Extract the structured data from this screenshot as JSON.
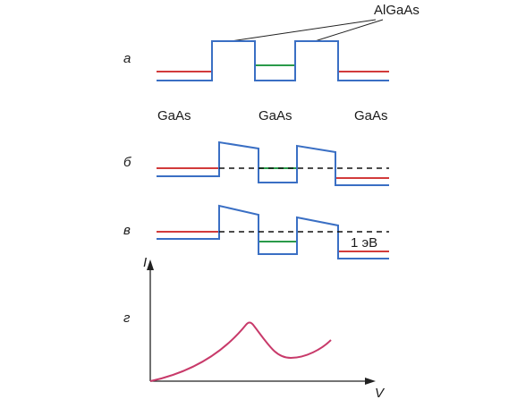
{
  "labels": {
    "barrier": "AlGaAs",
    "well_left": "GaAs",
    "well_center": "GaAs",
    "well_right": "GaAs",
    "energy": "1 эВ",
    "axis_y": "I",
    "axis_x": "V"
  },
  "panels": {
    "a": "а",
    "b": "б",
    "c": "в",
    "d": "г"
  },
  "colors": {
    "conduction_band": "#3a6fc4",
    "fermi_level": "#d23b3b",
    "well_level": "#2a9a4a",
    "curve": "#c83a6a",
    "axes": "#222222"
  }
}
